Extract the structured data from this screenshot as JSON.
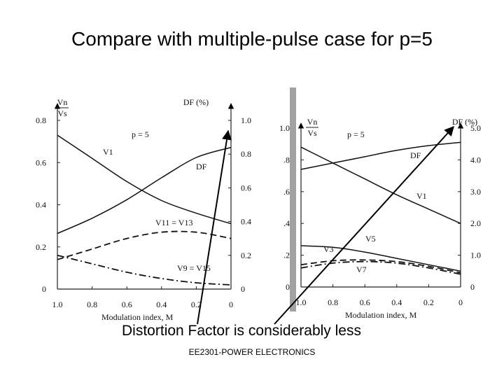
{
  "slide": {
    "title": "Compare with multiple-pulse case for p=5",
    "caption": "Distortion Factor is considerably less",
    "footer": "EE2301-POWER ELECTRONICS"
  },
  "chart_data": [
    {
      "type": "line",
      "xlabel": "Modulation index, M",
      "x_reversed": true,
      "xlim": [
        1.0,
        0
      ],
      "xticks": [
        "1.0",
        "0.8",
        "0.6",
        "0.4",
        "0.2",
        "0"
      ],
      "left_axis": {
        "label_top": "Vn",
        "label_bottom": "Vs",
        "ylim": [
          0,
          0.8
        ],
        "ticks": [
          "0",
          "0.2",
          "0.4",
          "0.6",
          "0.8"
        ]
      },
      "right_axis": {
        "label": "DF (%)",
        "ylim": [
          0,
          1.0
        ],
        "ticks": [
          "0",
          "0.2",
          "0.4",
          "0.6",
          "0.8",
          "1.0"
        ]
      },
      "annotation": "p = 5",
      "series": [
        {
          "name": "V1",
          "axis": "left",
          "style": "solid",
          "x": [
            1.0,
            0.8,
            0.6,
            0.4,
            0.2,
            0.0
          ],
          "y": [
            0.73,
            0.62,
            0.51,
            0.42,
            0.36,
            0.31
          ]
        },
        {
          "name": "DF",
          "axis": "right",
          "style": "solid",
          "x": [
            1.0,
            0.8,
            0.6,
            0.4,
            0.2,
            0.0
          ],
          "y": [
            0.33,
            0.42,
            0.53,
            0.66,
            0.78,
            0.84
          ]
        },
        {
          "name": "V11 = V13",
          "axis": "left",
          "style": "dashed",
          "x": [
            1.0,
            0.8,
            0.6,
            0.4,
            0.2,
            0.0
          ],
          "y": [
            0.14,
            0.19,
            0.24,
            0.27,
            0.27,
            0.24
          ]
        },
        {
          "name": "V9 = V15",
          "axis": "left",
          "style": "dashdot",
          "x": [
            1.0,
            0.8,
            0.6,
            0.4,
            0.2,
            0.0
          ],
          "y": [
            0.16,
            0.12,
            0.08,
            0.05,
            0.03,
            0.02
          ]
        }
      ]
    },
    {
      "type": "line",
      "xlabel": "Modulation index, M",
      "x_reversed": true,
      "xlim": [
        1.0,
        0
      ],
      "xticks": [
        "1.0",
        "0.8",
        "0.6",
        "0.4",
        "0.2",
        "0"
      ],
      "left_axis": {
        "label_top": "Vn",
        "label_bottom": "Vs",
        "ylim": [
          0,
          1.0
        ],
        "ticks": [
          "0",
          ".2",
          ".4",
          ".6",
          ".8",
          "1.0"
        ]
      },
      "right_axis": {
        "label": "DF (%)",
        "ylim": [
          0,
          5.0
        ],
        "ticks": [
          "0",
          "1.0",
          "2.0",
          "3.0",
          "4.0",
          "5.0"
        ]
      },
      "annotation": "p = 5",
      "series": [
        {
          "name": "V1",
          "axis": "left",
          "style": "solid",
          "x": [
            1.0,
            0.8,
            0.6,
            0.4,
            0.2,
            0.0
          ],
          "y": [
            0.88,
            0.78,
            0.68,
            0.58,
            0.49,
            0.4
          ]
        },
        {
          "name": "DF",
          "axis": "right",
          "style": "solid",
          "x": [
            1.0,
            0.8,
            0.6,
            0.4,
            0.2,
            0.0
          ],
          "y": [
            3.7,
            3.9,
            4.1,
            4.3,
            4.45,
            4.55
          ]
        },
        {
          "name": "V5",
          "axis": "left",
          "style": "solid",
          "x": [
            1.0,
            0.8,
            0.6,
            0.4,
            0.2,
            0.0
          ],
          "y": [
            0.26,
            0.25,
            0.22,
            0.18,
            0.14,
            0.1
          ]
        },
        {
          "name": "V3",
          "axis": "left",
          "style": "dashed",
          "x": [
            1.0,
            0.8,
            0.6,
            0.4,
            0.2,
            0.0
          ],
          "y": [
            0.14,
            0.165,
            0.17,
            0.16,
            0.13,
            0.09
          ]
        },
        {
          "name": "V7",
          "axis": "left",
          "style": "dashdot",
          "x": [
            1.0,
            0.8,
            0.6,
            0.4,
            0.2,
            0.0
          ],
          "y": [
            0.12,
            0.15,
            0.16,
            0.15,
            0.12,
            0.08
          ]
        }
      ]
    }
  ]
}
